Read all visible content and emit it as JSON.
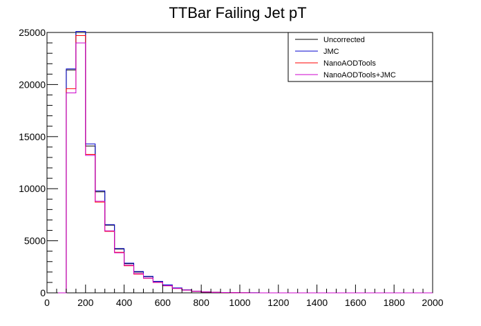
{
  "chart_data": {
    "type": "line",
    "title": "TTBar Failing Jet pT",
    "xlabel": "",
    "ylabel": "",
    "xlim": [
      0,
      2000
    ],
    "ylim": [
      0,
      25000
    ],
    "x_ticks": [
      0,
      200,
      400,
      600,
      800,
      1000,
      1200,
      1400,
      1600,
      1800,
      2000
    ],
    "y_ticks": [
      0,
      5000,
      10000,
      15000,
      20000,
      25000
    ],
    "x_tick_labels": [
      "0",
      "200",
      "400",
      "600",
      "800",
      "1000",
      "1200",
      "1400",
      "1600",
      "1800",
      "2000"
    ],
    "y_tick_labels": [
      "0",
      "5000",
      "10000",
      "15000",
      "20000",
      "25000"
    ],
    "bin_edges": [
      0,
      50,
      100,
      150,
      200,
      250,
      300,
      350,
      400,
      450,
      500,
      550,
      600,
      650,
      700,
      750,
      800,
      850,
      900,
      950,
      1000,
      1050,
      1100,
      1150,
      1200,
      1250,
      1300,
      1350,
      1400,
      1450,
      1500,
      1550,
      1600,
      1650,
      1700,
      1750,
      1800,
      1850,
      1900,
      1950,
      2000
    ],
    "grid": false,
    "legend_position": "top-right",
    "series": [
      {
        "name": "Uncorrected",
        "color": "#000000",
        "values": [
          0,
          0,
          21400,
          25000,
          14100,
          9700,
          6500,
          4200,
          2800,
          2000,
          1550,
          1080,
          750,
          460,
          280,
          160,
          90,
          50,
          30,
          15,
          8,
          5,
          3,
          2,
          1,
          1,
          0,
          0,
          0,
          0,
          0,
          0,
          0,
          0,
          0,
          0,
          0,
          0,
          0,
          0
        ]
      },
      {
        "name": "JMC",
        "color": "#0000cc",
        "values": [
          0,
          0,
          21500,
          25100,
          14300,
          9800,
          6550,
          4250,
          2850,
          2050,
          1580,
          1100,
          760,
          470,
          285,
          165,
          92,
          52,
          31,
          16,
          8,
          5,
          3,
          2,
          1,
          1,
          0,
          0,
          0,
          0,
          0,
          0,
          0,
          0,
          0,
          0,
          0,
          0,
          0,
          0
        ]
      },
      {
        "name": "NanoAODTools",
        "color": "#ff0000",
        "values": [
          0,
          0,
          19600,
          24700,
          13300,
          8700,
          5900,
          3900,
          2600,
          1800,
          1400,
          1000,
          680,
          420,
          260,
          150,
          85,
          48,
          28,
          14,
          7,
          4,
          3,
          2,
          1,
          1,
          0,
          0,
          0,
          0,
          0,
          0,
          0,
          0,
          0,
          0,
          0,
          0,
          0,
          0
        ]
      },
      {
        "name": "NanoAODTools+JMC",
        "color": "#cc00cc",
        "values": [
          0,
          0,
          19200,
          24000,
          13200,
          8800,
          5950,
          3850,
          2650,
          1850,
          1420,
          1010,
          690,
          425,
          262,
          152,
          86,
          49,
          29,
          14,
          7,
          4,
          3,
          2,
          1,
          1,
          0,
          0,
          0,
          0,
          0,
          0,
          0,
          0,
          0,
          0,
          0,
          0,
          0,
          0
        ]
      }
    ]
  }
}
